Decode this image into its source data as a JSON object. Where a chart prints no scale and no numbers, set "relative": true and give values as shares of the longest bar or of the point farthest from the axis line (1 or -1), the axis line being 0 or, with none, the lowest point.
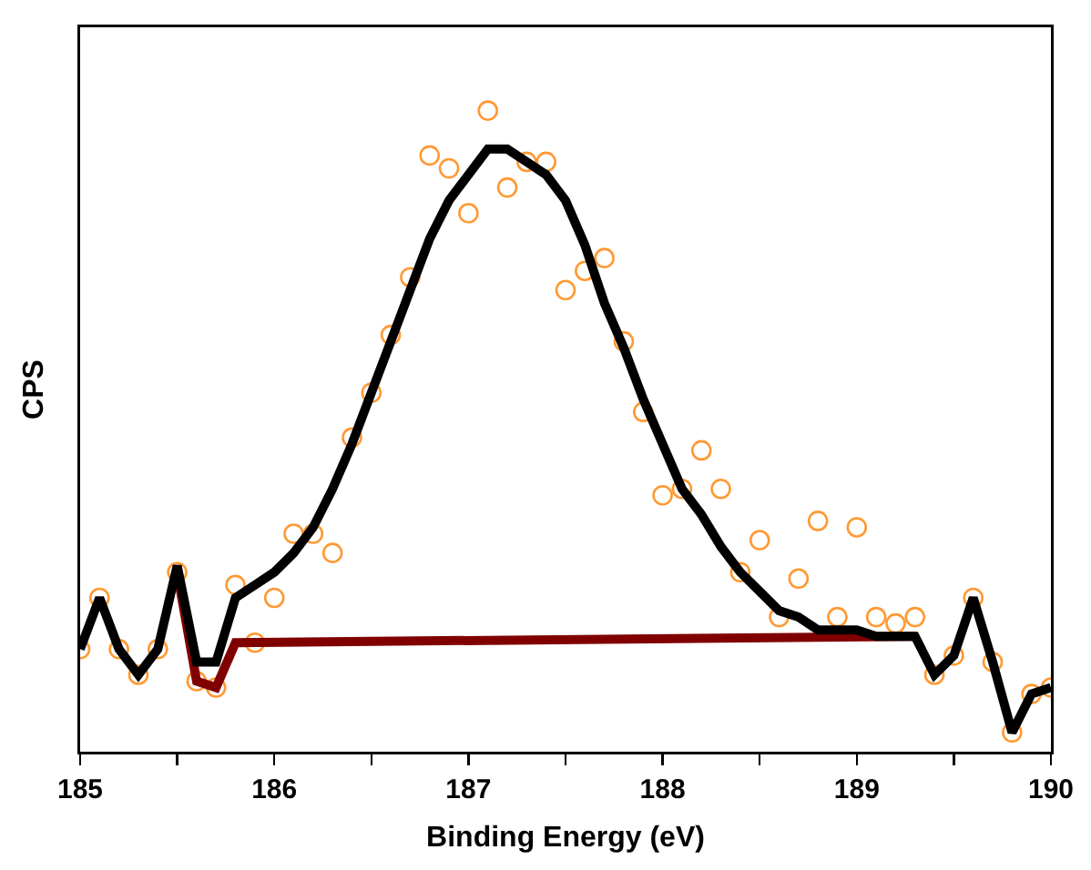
{
  "chart_data": {
    "type": "line",
    "xlabel": "Binding Energy (eV)",
    "ylabel": "CPS",
    "relative": true,
    "grid": false,
    "xlim": [
      185,
      190
    ],
    "xticks": [
      185,
      {
        "value": 185.5,
        "label": null
      },
      186,
      {
        "value": 186.5,
        "label": null
      },
      187,
      {
        "value": 187.5,
        "label": null
      },
      188,
      {
        "value": 188.5,
        "label": null
      },
      189,
      {
        "value": 189.5,
        "label": null
      },
      190
    ],
    "series": [
      {
        "type": "scatter",
        "marker": "circle",
        "color": "#ff9933",
        "x": [
          185.0,
          185.1,
          185.2,
          185.3,
          185.4,
          185.5,
          185.6,
          185.7,
          185.8,
          185.9,
          186.0,
          186.1,
          186.2,
          186.3,
          186.4,
          186.5,
          186.6,
          186.7,
          186.8,
          186.9,
          187.0,
          187.1,
          187.2,
          187.3,
          187.4,
          187.5,
          187.6,
          187.7,
          187.8,
          187.9,
          188.0,
          188.1,
          188.2,
          188.3,
          188.4,
          188.5,
          188.6,
          188.7,
          188.8,
          188.9,
          189.0,
          189.1,
          189.2,
          189.3,
          189.4,
          189.5,
          189.6,
          189.7,
          189.8,
          189.9,
          190.0
        ],
        "values": [
          0.16,
          0.24,
          0.16,
          0.12,
          0.16,
          0.28,
          0.11,
          0.1,
          0.26,
          0.17,
          0.24,
          0.34,
          0.34,
          0.31,
          0.49,
          0.56,
          0.65,
          0.74,
          0.93,
          0.91,
          0.84,
          1.0,
          0.88,
          0.92,
          0.92,
          0.72,
          0.75,
          0.77,
          0.64,
          0.53,
          0.4,
          0.41,
          0.47,
          0.41,
          0.28,
          0.33,
          0.21,
          0.27,
          0.36,
          0.21,
          0.35,
          0.21,
          0.2,
          0.21,
          0.12,
          0.15,
          0.24,
          0.14,
          0.03,
          0.09,
          0.1
        ]
      },
      {
        "line_style": "solid",
        "color": "#800000",
        "x": [
          185.5,
          185.6,
          185.7,
          185.8,
          189.3
        ],
        "values": [
          0.28,
          0.11,
          0.1,
          0.17,
          0.18
        ]
      },
      {
        "line_style": "solid",
        "color": "#000000",
        "x": [
          185.0,
          185.1,
          185.2,
          185.3,
          185.4,
          185.5,
          185.6,
          185.7,
          185.8,
          185.9,
          186.0,
          186.1,
          186.2,
          186.3,
          186.4,
          186.5,
          186.6,
          186.7,
          186.8,
          186.9,
          187.0,
          187.1,
          187.2,
          187.3,
          187.4,
          187.5,
          187.6,
          187.7,
          187.8,
          187.9,
          188.0,
          188.1,
          188.2,
          188.3,
          188.4,
          188.5,
          188.6,
          188.7,
          188.8,
          188.9,
          189.0,
          189.1,
          189.2,
          189.3,
          189.4,
          189.5,
          189.6,
          189.7,
          189.8,
          189.9,
          190.0
        ],
        "values": [
          0.16,
          0.24,
          0.16,
          0.12,
          0.16,
          0.29,
          0.14,
          0.14,
          0.24,
          0.26,
          0.28,
          0.31,
          0.35,
          0.41,
          0.48,
          0.56,
          0.64,
          0.72,
          0.8,
          0.86,
          0.9,
          0.94,
          0.94,
          0.92,
          0.9,
          0.86,
          0.79,
          0.7,
          0.63,
          0.55,
          0.48,
          0.41,
          0.37,
          0.32,
          0.28,
          0.25,
          0.22,
          0.21,
          0.19,
          0.19,
          0.19,
          0.18,
          0.18,
          0.18,
          0.12,
          0.15,
          0.24,
          0.14,
          0.03,
          0.09,
          0.1
        ]
      }
    ]
  }
}
